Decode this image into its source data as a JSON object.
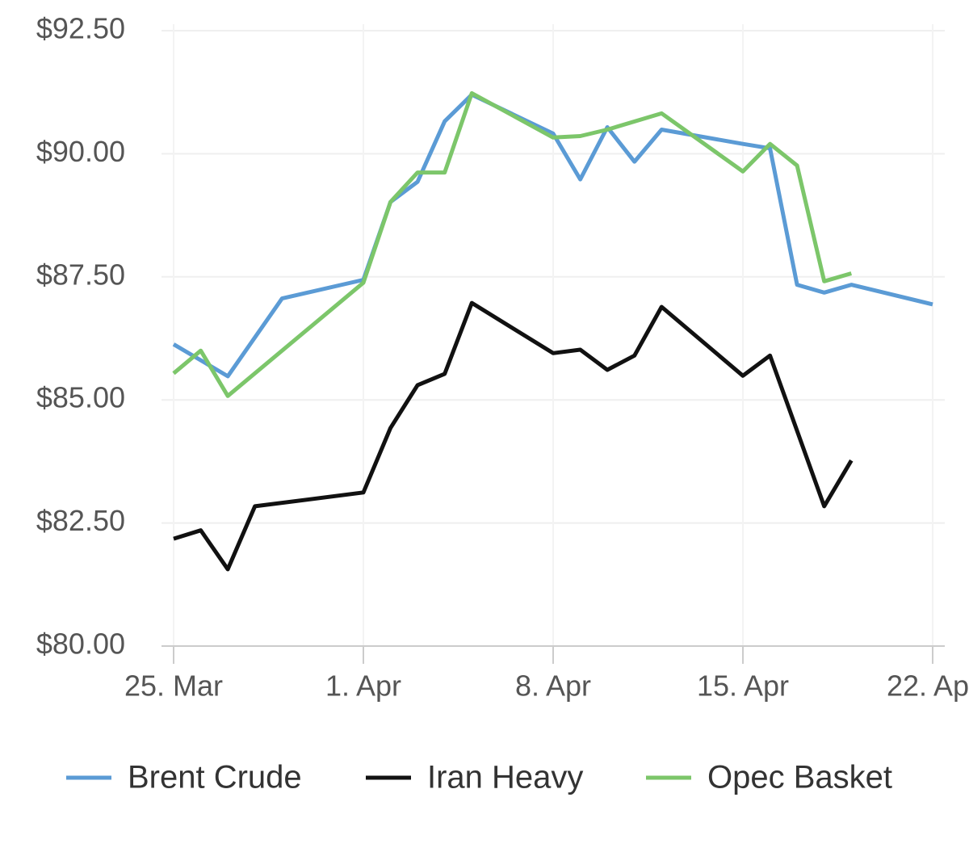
{
  "chart_data": {
    "type": "line",
    "xlim": [
      0,
      28
    ],
    "xticks": [
      {
        "value": 0,
        "label": "25. Mar"
      },
      {
        "value": 7,
        "label": "1. Apr"
      },
      {
        "value": 14,
        "label": "8. Apr"
      },
      {
        "value": 21,
        "label": "15. Apr"
      },
      {
        "value": 28,
        "label": "22. Apr"
      }
    ],
    "ylim": [
      80,
      92.5
    ],
    "yticks": [
      {
        "value": 80,
        "label": "$80.00"
      },
      {
        "value": 82.5,
        "label": "$82.50"
      },
      {
        "value": 85,
        "label": "$85.00"
      },
      {
        "value": 87.5,
        "label": "$87.50"
      },
      {
        "value": 90,
        "label": "$90.00"
      },
      {
        "value": 92.5,
        "label": "$92.50"
      }
    ],
    "grid": true,
    "legend": "bottom",
    "series": [
      {
        "name": "Brent Crude",
        "color": "#5b9bd5",
        "x": [
          0,
          2,
          4,
          7,
          8,
          9,
          10,
          11,
          14,
          15,
          16,
          17,
          18,
          21,
          22,
          23,
          24,
          25,
          28
        ],
        "values": [
          86.13,
          85.48,
          87.06,
          87.44,
          89.02,
          89.43,
          90.66,
          91.2,
          90.41,
          89.48,
          90.54,
          89.84,
          90.49,
          90.2,
          90.11,
          87.34,
          87.18,
          87.34,
          86.94
        ]
      },
      {
        "name": "Iran Heavy",
        "color": "#111111",
        "x": [
          0,
          1,
          2,
          3,
          7,
          8,
          9,
          10,
          11,
          14,
          15,
          16,
          17,
          18,
          21,
          22,
          24,
          25
        ],
        "values": [
          82.18,
          82.35,
          81.56,
          82.84,
          83.12,
          84.43,
          85.3,
          85.53,
          86.97,
          85.95,
          86.02,
          85.61,
          85.9,
          86.89,
          85.49,
          85.9,
          82.84,
          83.77
        ]
      },
      {
        "name": "Opec Basket",
        "color": "#7cc66a",
        "x": [
          0,
          1,
          2,
          7,
          8,
          9,
          10,
          11,
          14,
          15,
          16,
          18,
          21,
          22,
          23,
          24,
          25
        ],
        "values": [
          85.54,
          86.0,
          85.08,
          87.38,
          89.02,
          89.62,
          89.62,
          91.23,
          90.33,
          90.36,
          90.49,
          90.82,
          89.64,
          90.2,
          89.76,
          87.41,
          87.57
        ]
      }
    ]
  }
}
